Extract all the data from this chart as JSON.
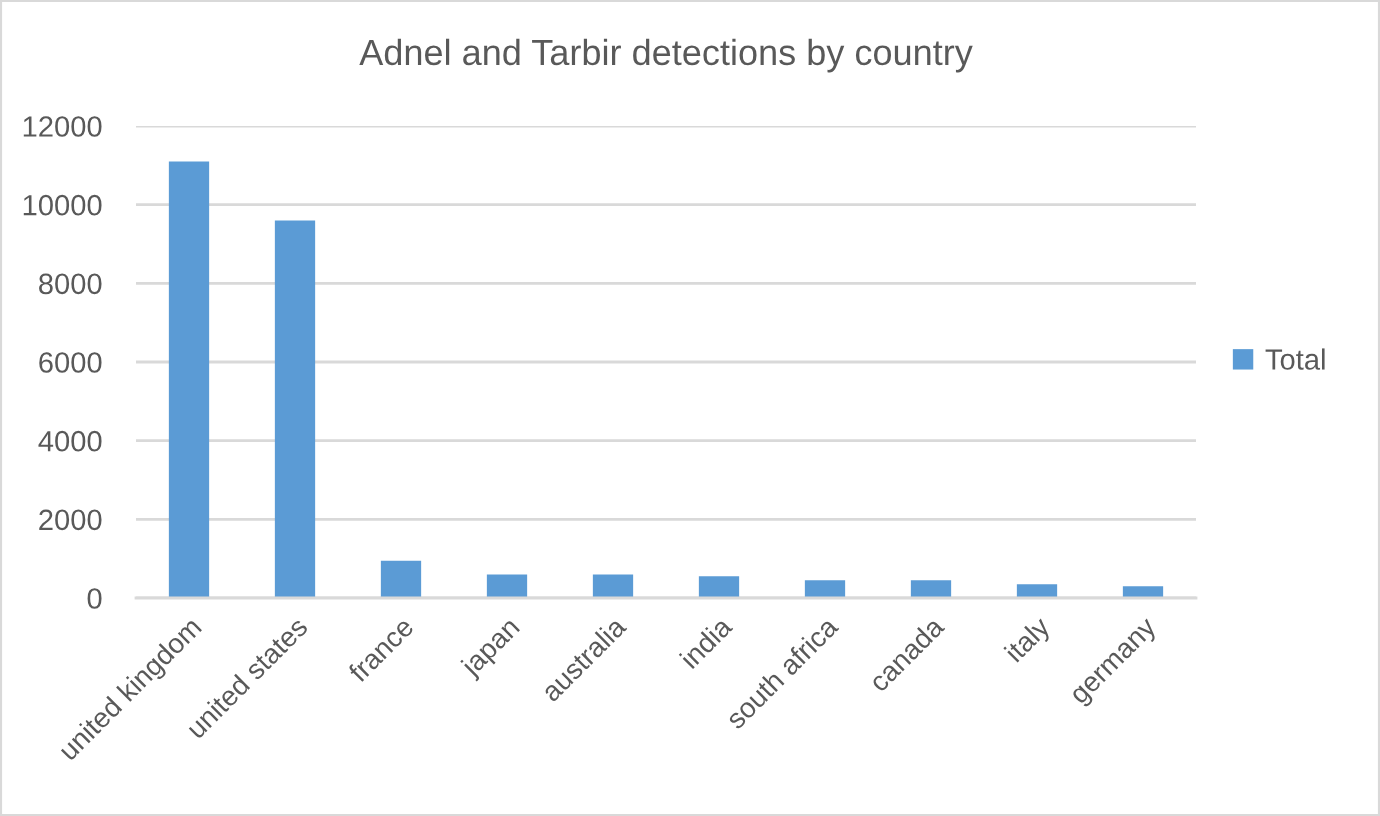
{
  "chart_data": {
    "type": "bar",
    "title": "Adnel and Tarbir detections by country",
    "categories": [
      "united kingdom",
      "united states",
      "france",
      "japan",
      "australia",
      "india",
      "south africa",
      "canada",
      "italy",
      "germany"
    ],
    "series": [
      {
        "name": "Total",
        "color": "#5b9bd5",
        "values": [
          11100,
          9600,
          950,
          600,
          600,
          550,
          450,
          450,
          350,
          300
        ]
      }
    ],
    "ylim": [
      0,
      12000
    ],
    "yticks": [
      0,
      2000,
      4000,
      6000,
      8000,
      10000,
      12000
    ],
    "grid": "y",
    "legend": "right"
  }
}
